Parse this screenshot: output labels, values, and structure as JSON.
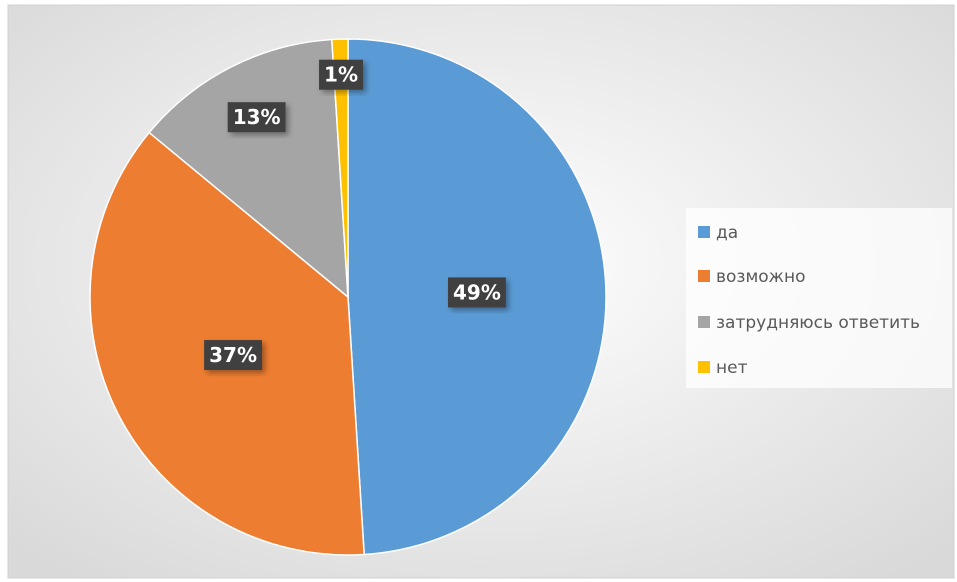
{
  "chart_data": {
    "type": "pie",
    "categories": [
      "да",
      "возможно",
      "затрудняюсь ответить",
      "нет"
    ],
    "values": [
      49,
      37,
      13,
      1
    ],
    "value_labels": [
      "49%",
      "37%",
      "13%",
      "1%"
    ],
    "colors": [
      "#5b9bd5",
      "#ed7d31",
      "#a5a5a5",
      "#ffc000"
    ],
    "legend": "right"
  }
}
